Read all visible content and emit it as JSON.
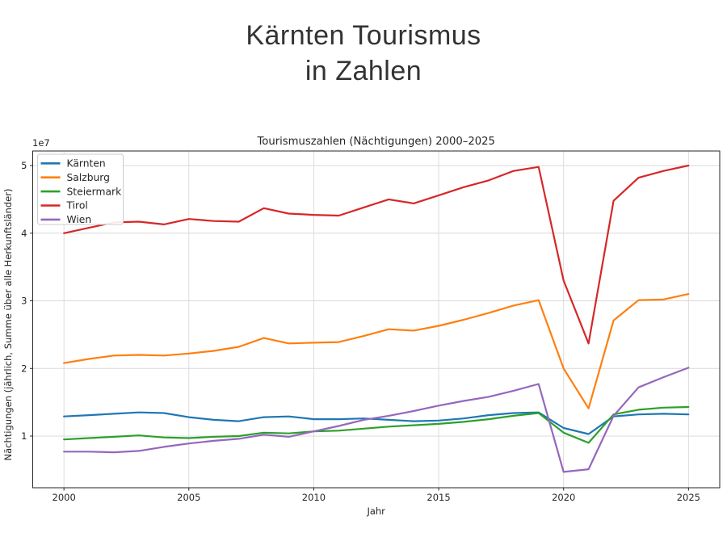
{
  "page": {
    "title_line1": "Kärnten Tourismus",
    "title_line2": "in Zahlen"
  },
  "chart_data": {
    "type": "line",
    "title": "Tourismuszahlen (Nächtigungen) 2000–2025",
    "xlabel": "Jahr",
    "ylabel": "Nächtigungen (jährlich, Summe über alle Herkunftsländer)",
    "offset_text": "1e7",
    "unit_multiplier": 10000000,
    "x": [
      2000,
      2001,
      2002,
      2003,
      2004,
      2005,
      2006,
      2007,
      2008,
      2009,
      2010,
      2011,
      2012,
      2013,
      2014,
      2015,
      2016,
      2017,
      2018,
      2019,
      2020,
      2021,
      2022,
      2023,
      2024,
      2025
    ],
    "series": [
      {
        "name": "Kärnten",
        "color": "#1f77b4",
        "values": [
          1.29,
          1.31,
          1.33,
          1.35,
          1.34,
          1.28,
          1.24,
          1.22,
          1.28,
          1.29,
          1.25,
          1.25,
          1.26,
          1.24,
          1.22,
          1.23,
          1.26,
          1.31,
          1.34,
          1.35,
          1.12,
          1.03,
          1.29,
          1.32,
          1.33,
          1.32
        ]
      },
      {
        "name": "Salzburg",
        "color": "#ff7f0e",
        "values": [
          2.08,
          2.14,
          2.19,
          2.2,
          2.19,
          2.22,
          2.26,
          2.32,
          2.45,
          2.37,
          2.38,
          2.39,
          2.48,
          2.58,
          2.56,
          2.63,
          2.72,
          2.82,
          2.93,
          3.01,
          2.0,
          1.41,
          2.71,
          3.01,
          3.02,
          3.1
        ]
      },
      {
        "name": "Steiermark",
        "color": "#2ca02c",
        "values": [
          0.95,
          0.97,
          0.99,
          1.01,
          0.98,
          0.97,
          0.99,
          1.0,
          1.05,
          1.04,
          1.07,
          1.08,
          1.11,
          1.14,
          1.16,
          1.18,
          1.21,
          1.25,
          1.3,
          1.34,
          1.05,
          0.9,
          1.32,
          1.39,
          1.42,
          1.43
        ]
      },
      {
        "name": "Tirol",
        "color": "#d62728",
        "values": [
          4.0,
          4.08,
          4.16,
          4.17,
          4.13,
          4.21,
          4.18,
          4.17,
          4.37,
          4.29,
          4.27,
          4.26,
          4.38,
          4.5,
          4.44,
          4.56,
          4.68,
          4.78,
          4.92,
          4.98,
          3.3,
          2.37,
          4.48,
          4.82,
          4.92,
          5.0
        ]
      },
      {
        "name": "Wien",
        "color": "#9467bd",
        "values": [
          0.77,
          0.77,
          0.76,
          0.78,
          0.84,
          0.89,
          0.93,
          0.96,
          1.02,
          0.99,
          1.07,
          1.15,
          1.24,
          1.3,
          1.37,
          1.45,
          1.52,
          1.58,
          1.67,
          1.77,
          0.47,
          0.51,
          1.3,
          1.72,
          1.87,
          2.01
        ]
      }
    ],
    "xticks": [
      2000,
      2005,
      2010,
      2015,
      2020,
      2025
    ],
    "yticks": [
      1,
      2,
      3,
      4,
      5
    ],
    "xlim": [
      1998.75,
      2026.25
    ],
    "ylim": [
      0.236,
      5.215
    ],
    "grid": true,
    "legend_position": "upper left"
  }
}
